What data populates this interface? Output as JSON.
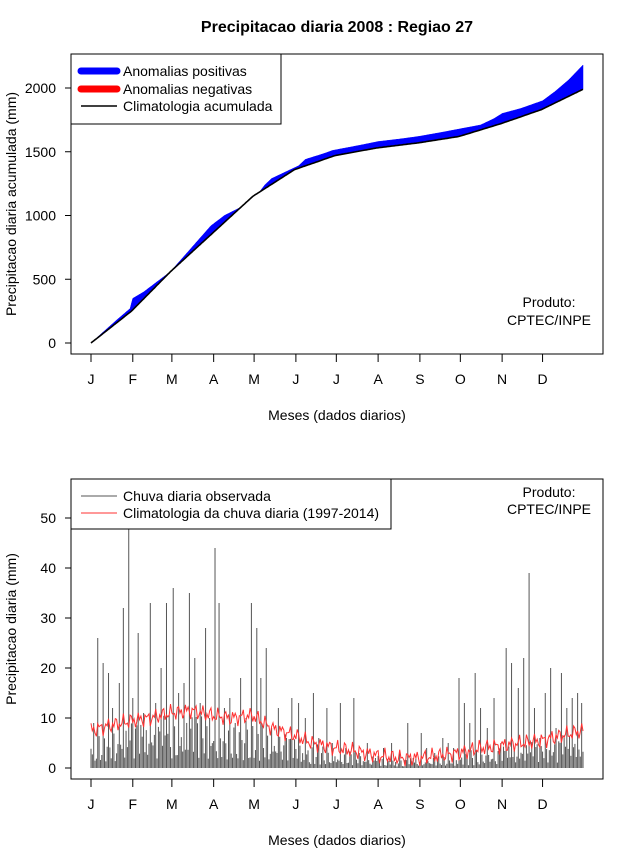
{
  "colors": {
    "positive": "#0000ff",
    "negative": "#ff0000",
    "climatology": "#000000",
    "observed": "#555555",
    "climatology_daily": "#ff3030"
  },
  "chart_data": [
    {
      "type": "area",
      "title": "Precipitacao diaria 2008 : Regiao 27",
      "xlabel": "Meses (dados diarios)",
      "ylabel": "Precipitacao diaria acumulada (mm)",
      "xlim": [
        1,
        366
      ],
      "ylim": [
        0,
        2200
      ],
      "month_labels": [
        "J",
        "F",
        "M",
        "A",
        "M",
        "J",
        "J",
        "A",
        "S",
        "O",
        "N",
        "D"
      ],
      "month_start_days": [
        1,
        32,
        61,
        92,
        122,
        153,
        183,
        214,
        245,
        275,
        306,
        336
      ],
      "yticks": [
        0,
        500,
        1000,
        1500,
        2000
      ],
      "legend": {
        "position": "top-left",
        "entries": [
          "Anomalias positivas",
          "Anomalias negativas",
          "Climatologia acumulada"
        ]
      },
      "annotation": [
        "Produto:",
        "CPTEC/INPE"
      ],
      "climatology_cumulative": {
        "days": [
          1,
          31,
          60,
          91,
          121,
          152,
          182,
          213,
          244,
          274,
          305,
          335,
          366
        ],
        "values": [
          0,
          250,
          560,
          860,
          1150,
          1360,
          1470,
          1530,
          1570,
          1620,
          1720,
          1830,
          1990
        ]
      },
      "observed_cumulative": {
        "days": [
          1,
          20,
          30,
          32,
          40,
          60,
          80,
          90,
          100,
          115,
          122,
          130,
          135,
          155,
          160,
          175,
          180,
          190,
          200,
          214,
          230,
          244,
          260,
          275,
          290,
          300,
          306,
          320,
          336,
          345,
          355,
          366
        ],
        "values": [
          0,
          180,
          270,
          350,
          400,
          560,
          800,
          920,
          1000,
          1080,
          1130,
          1240,
          1290,
          1390,
          1440,
          1490,
          1510,
          1530,
          1550,
          1580,
          1600,
          1620,
          1650,
          1680,
          1710,
          1760,
          1800,
          1840,
          1900,
          1970,
          2060,
          2180
        ]
      }
    },
    {
      "type": "bar",
      "xlabel": "Meses (dados diarios)",
      "ylabel": "Precipitacao diaria (mm)",
      "xlim": [
        1,
        366
      ],
      "ylim": [
        0,
        50
      ],
      "month_labels": [
        "J",
        "F",
        "M",
        "A",
        "M",
        "J",
        "J",
        "A",
        "S",
        "O",
        "N",
        "D"
      ],
      "month_start_days": [
        1,
        32,
        61,
        92,
        122,
        153,
        183,
        214,
        245,
        275,
        306,
        336
      ],
      "yticks": [
        0,
        10,
        20,
        30,
        40,
        50
      ],
      "legend": {
        "position": "top-left",
        "entries": [
          "Chuva diaria observada",
          "Climatologia da chuva diaria (1997-2014)"
        ]
      },
      "annotation": [
        "Produto:",
        "CPTEC/INPE"
      ],
      "observed_peaks": {
        "days": [
          3,
          6,
          10,
          14,
          17,
          22,
          25,
          29,
          32,
          36,
          40,
          45,
          49,
          53,
          57,
          62,
          66,
          70,
          74,
          78,
          82,
          86,
          89,
          93,
          96,
          100,
          104,
          108,
          112,
          116,
          120,
          124,
          127,
          131,
          135,
          140,
          146,
          150,
          155,
          160,
          166,
          170,
          176,
          180,
          186,
          190,
          196,
          200,
          206,
          212,
          218,
          224,
          230,
          236,
          240,
          246,
          250,
          256,
          262,
          266,
          270,
          274,
          278,
          282,
          286,
          290,
          295,
          300,
          305,
          309,
          313,
          318,
          322,
          326,
          330,
          334,
          338,
          342,
          346,
          350,
          354,
          358,
          362,
          365
        ],
        "values": [
          9,
          26,
          21,
          19,
          12,
          17,
          32,
          49,
          14,
          27,
          11,
          33,
          13,
          20,
          33,
          36,
          15,
          17,
          35,
          22,
          13,
          28,
          10,
          44,
          33,
          12,
          14,
          9,
          18,
          10,
          33,
          28,
          18,
          24,
          8,
          12,
          6,
          14,
          13,
          10,
          15,
          6,
          12,
          5,
          13,
          4,
          14,
          3,
          5,
          2,
          4,
          5,
          3,
          9,
          2,
          7,
          4,
          3,
          6,
          5,
          4,
          18,
          13,
          9,
          19,
          12,
          8,
          14,
          5,
          24,
          21,
          16,
          22,
          39,
          12,
          6,
          15,
          20,
          8,
          19,
          12,
          14,
          15,
          13
        ]
      },
      "climatology_daily": {
        "days": [
          1,
          15,
          32,
          45,
          60,
          75,
          91,
          105,
          121,
          135,
          152,
          165,
          182,
          195,
          213,
          230,
          244,
          260,
          274,
          290,
          305,
          320,
          335,
          350,
          366
        ],
        "values": [
          7.5,
          8.5,
          9.5,
          10,
          11,
          11.5,
          10.5,
          10,
          10.5,
          8,
          6.5,
          5,
          4,
          3.5,
          2.5,
          2,
          2,
          2.5,
          3,
          4,
          4.5,
          5,
          5.5,
          6.5,
          7.5
        ]
      }
    }
  ]
}
